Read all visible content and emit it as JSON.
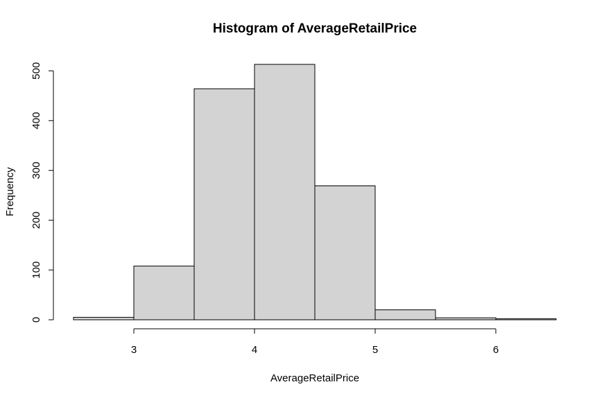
{
  "chart_data": {
    "type": "bar",
    "title": "Histogram of AverageRetailPrice",
    "xlabel": "AverageRetailPrice",
    "ylabel": "Frequency",
    "bins": [
      {
        "start": 2.5,
        "end": 3.0,
        "count": 5
      },
      {
        "start": 3.0,
        "end": 3.5,
        "count": 108
      },
      {
        "start": 3.5,
        "end": 4.0,
        "count": 464
      },
      {
        "start": 4.0,
        "end": 4.5,
        "count": 513
      },
      {
        "start": 4.5,
        "end": 5.0,
        "count": 269
      },
      {
        "start": 5.0,
        "end": 5.5,
        "count": 20
      },
      {
        "start": 5.5,
        "end": 6.0,
        "count": 4
      },
      {
        "start": 6.0,
        "end": 6.5,
        "count": 2
      }
    ],
    "x_ticks": [
      3,
      4,
      5,
      6
    ],
    "y_ticks": [
      0,
      100,
      200,
      300,
      400,
      500
    ],
    "xlim": [
      2.5,
      6.5
    ],
    "ylim": [
      0,
      513
    ],
    "bar_color": "#d3d3d3",
    "border_color": "#000000",
    "grid": false,
    "legend": "none"
  }
}
